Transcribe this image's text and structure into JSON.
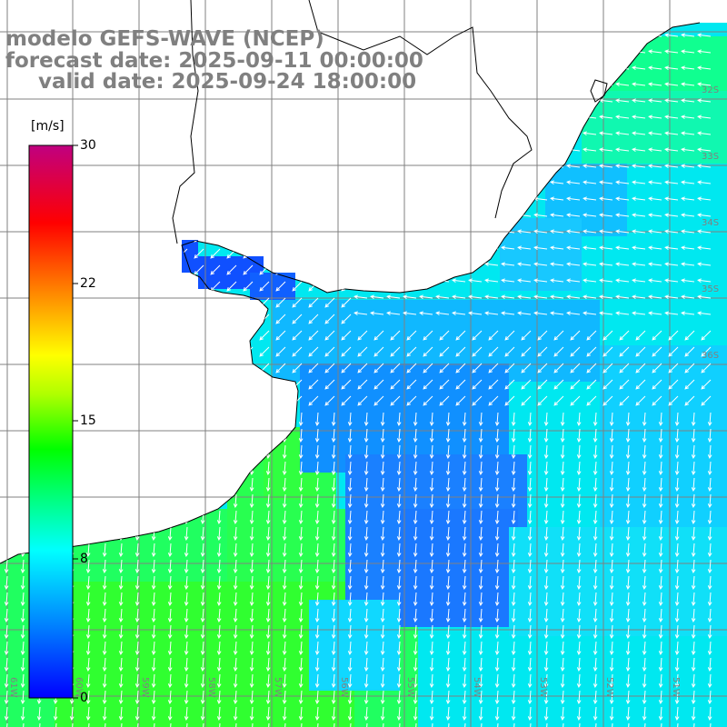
{
  "titles": {
    "model": "modelo GEFS-WAVE (NCEP)",
    "forecast": "forecast date: 2025-09-11 00:00:00",
    "valid": "valid date: 2025-09-24 18:00:00"
  },
  "colorbar": {
    "unit": "[m/s]",
    "ticks": [
      "30",
      "22",
      "15",
      "8",
      "0"
    ],
    "tick_values": [
      30,
      22,
      15,
      8,
      0
    ],
    "range": [
      0,
      30
    ],
    "colors": [
      "#0000ff",
      "#0080ff",
      "#00ffff",
      "#00ff80",
      "#00ff00",
      "#80ff00",
      "#ffff00",
      "#ff8000",
      "#ff0000",
      "#c00080"
    ]
  },
  "map": {
    "lat_labels": [
      "32S",
      "33S",
      "34S",
      "35S",
      "36S"
    ],
    "lon_labels": [
      "61W",
      "60W",
      "59W",
      "58W",
      "57W",
      "56W",
      "55W",
      "54W",
      "53W",
      "52W",
      "51W"
    ],
    "land_color": "#ffffff",
    "grid_color": "#808080",
    "arrow_color": "#ffffff"
  }
}
